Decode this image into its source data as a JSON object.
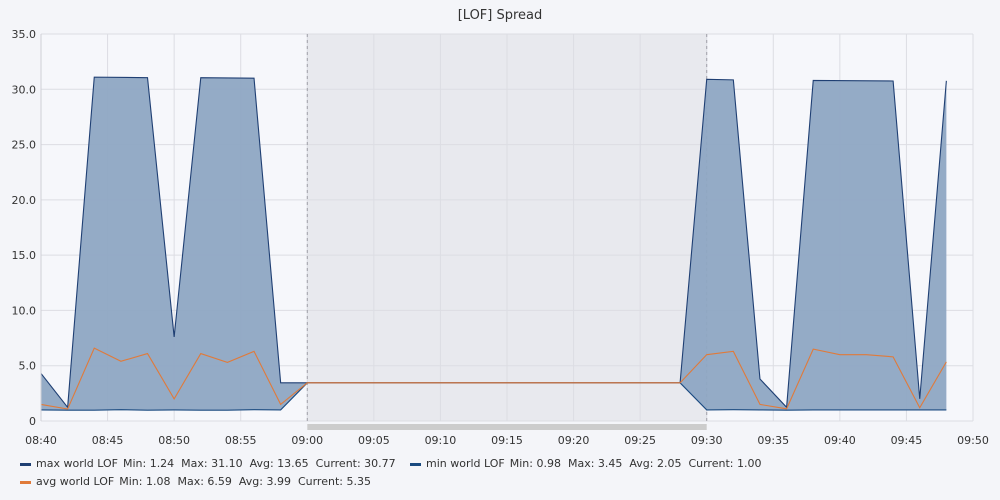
{
  "chart_data": {
    "type": "area",
    "title": "[LOF] Spread",
    "xlabel": "",
    "ylabel": "",
    "x_range": [
      "08:40",
      "09:50"
    ],
    "ylim": [
      0,
      35
    ],
    "grid": true,
    "legend_placement": "bottom-left",
    "x_ticks": [
      "08:40",
      "08:45",
      "08:50",
      "08:55",
      "09:00",
      "09:05",
      "09:10",
      "09:15",
      "09:20",
      "09:25",
      "09:30",
      "09:35",
      "09:40",
      "09:45",
      "09:50"
    ],
    "y_ticks": [
      "0",
      "5.0",
      "10.0",
      "15.0",
      "20.0",
      "25.0",
      "30.0",
      "35.0"
    ],
    "highlight_range": [
      "09:00",
      "09:30"
    ],
    "colors": {
      "max": "#1f3f73",
      "min": "#1a4a80",
      "avg": "#e07a3a",
      "band_fill": "#8ea6c3",
      "highlight_fill": "#e8e9ee",
      "scrollbar": "#cccccc"
    },
    "series": [
      {
        "name": "max world LOF",
        "stats": "Min: 1.24  Max: 31.10  Avg: 13.65  Current: 30.77",
        "points": [
          [
            "08:40",
            4.3
          ],
          [
            "08:42",
            1.24
          ],
          [
            "08:44",
            31.1
          ],
          [
            "08:48",
            31.05
          ],
          [
            "08:50",
            7.6
          ],
          [
            "08:52",
            31.05
          ],
          [
            "08:56",
            31.0
          ],
          [
            "08:58",
            3.45
          ],
          [
            "09:00",
            3.45
          ],
          [
            "09:28",
            3.45
          ],
          [
            "09:30",
            30.9
          ],
          [
            "09:32",
            30.85
          ],
          [
            "09:34",
            3.8
          ],
          [
            "09:36",
            1.24
          ],
          [
            "09:38",
            30.8
          ],
          [
            "09:44",
            30.75
          ],
          [
            "09:46",
            2.0
          ],
          [
            "09:48",
            30.77
          ]
        ]
      },
      {
        "name": "min world LOF",
        "stats": "Min: 0.98  Max: 3.45  Avg: 2.05  Current: 1.00",
        "points": [
          [
            "08:40",
            1.0
          ],
          [
            "08:42",
            0.98
          ],
          [
            "08:44",
            0.98
          ],
          [
            "08:46",
            1.02
          ],
          [
            "08:48",
            0.98
          ],
          [
            "08:50",
            1.0
          ],
          [
            "08:52",
            0.98
          ],
          [
            "08:54",
            0.98
          ],
          [
            "08:56",
            1.02
          ],
          [
            "08:58",
            1.0
          ],
          [
            "09:00",
            3.45
          ],
          [
            "09:28",
            3.45
          ],
          [
            "09:30",
            1.0
          ],
          [
            "09:32",
            1.02
          ],
          [
            "09:34",
            1.0
          ],
          [
            "09:36",
            0.98
          ],
          [
            "09:38",
            1.0
          ],
          [
            "09:48",
            1.0
          ]
        ]
      },
      {
        "name": "avg world LOF",
        "stats": "Min: 1.08  Max: 6.59  Avg: 3.99  Current: 5.35",
        "points": [
          [
            "08:40",
            1.5
          ],
          [
            "08:42",
            1.08
          ],
          [
            "08:44",
            6.59
          ],
          [
            "08:46",
            5.4
          ],
          [
            "08:48",
            6.1
          ],
          [
            "08:50",
            2.0
          ],
          [
            "08:52",
            6.1
          ],
          [
            "08:54",
            5.3
          ],
          [
            "08:56",
            6.3
          ],
          [
            "08:58",
            1.5
          ],
          [
            "09:00",
            3.45
          ],
          [
            "09:28",
            3.45
          ],
          [
            "09:30",
            6.0
          ],
          [
            "09:32",
            6.3
          ],
          [
            "09:34",
            1.5
          ],
          [
            "09:36",
            1.1
          ],
          [
            "09:38",
            6.5
          ],
          [
            "09:40",
            6.0
          ],
          [
            "09:42",
            6.0
          ],
          [
            "09:44",
            5.8
          ],
          [
            "09:46",
            1.2
          ],
          [
            "09:48",
            5.35
          ]
        ]
      }
    ]
  }
}
